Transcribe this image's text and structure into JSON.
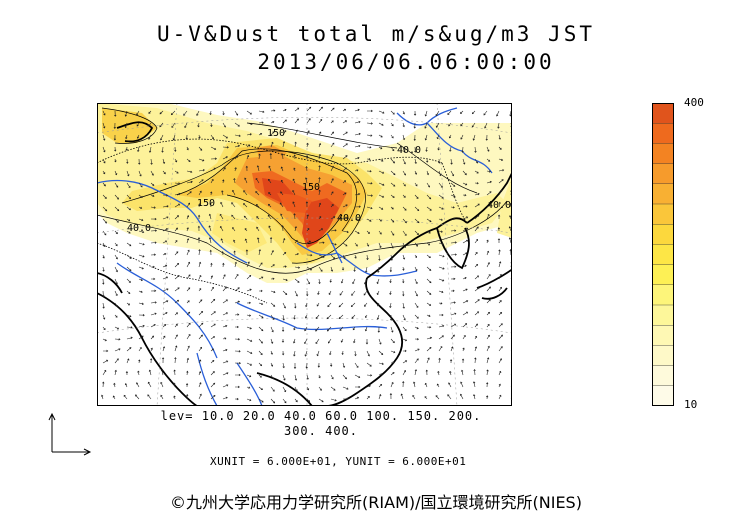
{
  "title": {
    "line1": "U-V&Dust total m/s&ug/m3 JST",
    "line2": "2013/06/06.06:00:00"
  },
  "colorbar": {
    "max_label": "400",
    "min_label": "10",
    "colors": [
      "#e0541c",
      "#ee6a1e",
      "#f38322",
      "#f69b2c",
      "#f8b033",
      "#fac63a",
      "#fcd83d",
      "#fde646",
      "#fdf055",
      "#fdf57a",
      "#fdf79a",
      "#fef8b4",
      "#fef9c8",
      "#fefadb",
      "#fefbe8"
    ]
  },
  "contour_labels": [
    "150",
    "40.0",
    "150",
    "40.0",
    "40.0",
    "40.0",
    "150"
  ],
  "levels": {
    "line1": "lev= 10.0 20.0 40.0 60.0 100. 150. 200.",
    "line2": "300. 400."
  },
  "units": "XUNIT = 6.000E+01, YUNIT = 6.000E+01",
  "credit": "©九州大学応用力学研究所(RIAM)/国立環境研究所(NIES)",
  "map_colors": {
    "dust_low": "#fdf3a0",
    "dust_mid": "#f9d24a",
    "dust_high": "#ef6a20",
    "dust_max": "#e0461a",
    "river": "#2a5fd8",
    "coast": "#000000"
  }
}
